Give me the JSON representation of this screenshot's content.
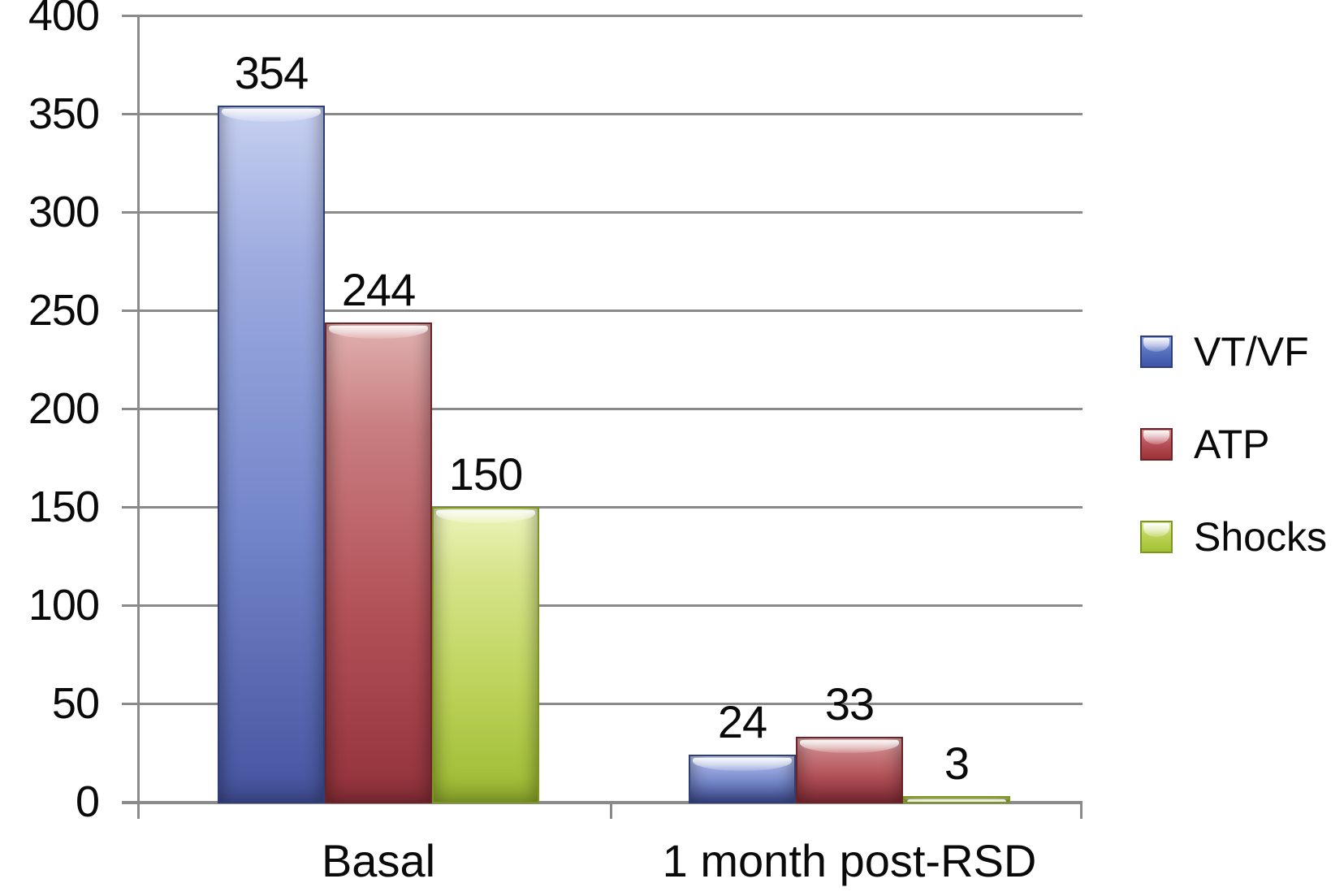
{
  "chart_data": {
    "type": "bar",
    "title": "",
    "xlabel": "",
    "ylabel": "",
    "categories": [
      "Basal",
      "1 month post-RSD"
    ],
    "series": [
      {
        "name": "VT/VF",
        "values": [
          354,
          24
        ],
        "color": "#5a6cb8",
        "border_color": "#2e3e7a",
        "color_key": "blue"
      },
      {
        "name": "ATP",
        "values": [
          244,
          33
        ],
        "color": "#b25158",
        "border_color": "#6e2127",
        "color_key": "red"
      },
      {
        "name": "Shocks",
        "values": [
          150,
          3
        ],
        "color": "#bdd35b",
        "border_color": "#7b971f",
        "color_key": "green"
      }
    ],
    "data_labels": [
      [
        "354",
        "244",
        "150"
      ],
      [
        "24",
        "33",
        "3"
      ]
    ],
    "ylim": [
      0,
      400
    ],
    "yticks": [
      0,
      50,
      100,
      150,
      200,
      250,
      300,
      350,
      400
    ],
    "grid": true,
    "gridline_color": "#8a8a8a",
    "text_color": "#0a0a0a",
    "background_color": "#ffffff",
    "legend_position": "right"
  }
}
